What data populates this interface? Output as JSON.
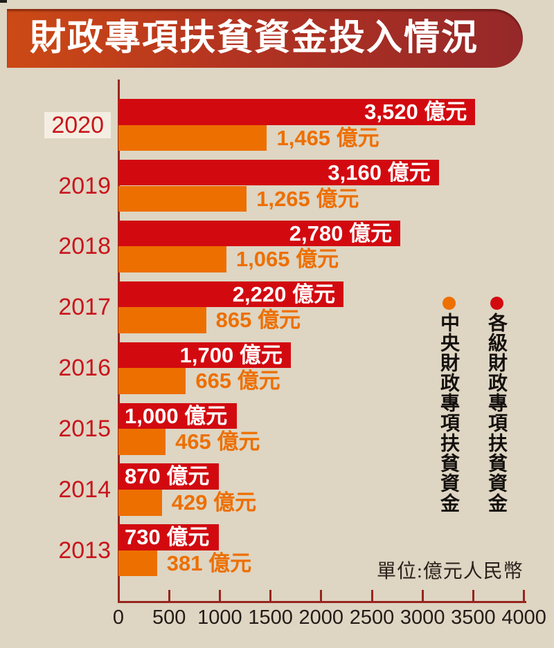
{
  "page": {
    "background": "#ded5c3"
  },
  "header": {
    "title": "財政專項扶貧資金投入情況",
    "banner_gradient_left": "#cc4a15",
    "banner_gradient_right": "#952829",
    "text_color": "#ffffff"
  },
  "unit_note": "單位:億元人民幣",
  "legend": {
    "items": [
      {
        "label": "中央財政專項扶貧資金",
        "color": "#ed6f00"
      },
      {
        "label": "各級財政專項扶貧資金",
        "color": "#d20a10"
      }
    ]
  },
  "axis": {
    "tick_values": [
      0,
      500,
      1000,
      1500,
      2000,
      2500,
      3000,
      3500,
      4000
    ],
    "color": "#96251e",
    "label_color": "#231c17"
  },
  "chart_data": {
    "type": "bar",
    "orientation": "horizontal",
    "title": "財政專項扶貧資金投入情況",
    "categories": [
      "2020",
      "2019",
      "2018",
      "2017",
      "2016",
      "2015",
      "2014",
      "2013"
    ],
    "series": [
      {
        "name": "各級財政專項扶貧資金",
        "color": "#d20a10",
        "values": [
          3520,
          3160,
          2780,
          2220,
          1700,
          1000,
          870,
          730
        ],
        "labels": [
          "3,520 億元",
          "3,160 億元",
          "2,780 億元",
          "2,220 億元",
          "1,700 億元",
          "1,000 億元",
          "870 億元",
          "730 億元"
        ],
        "label_color": "#ffffff"
      },
      {
        "name": "中央財政專項扶貧資金",
        "color": "#ed6f00",
        "values": [
          1465,
          1265,
          1065,
          865,
          665,
          465,
          429,
          381
        ],
        "labels": [
          "1,465 億元",
          "1,265 億元",
          "1,065 億元",
          "865 億元",
          "665 億元",
          "465 億元",
          "429 億元",
          "381 億元"
        ],
        "label_color": "#ed6f00"
      }
    ],
    "xlim": [
      0,
      4000
    ],
    "unit": "億元",
    "legend_position": "right",
    "grid": false,
    "highlighted_category": "2020",
    "year_label_color": "#c8151c",
    "highlight_box_color": "#f3eee1"
  }
}
